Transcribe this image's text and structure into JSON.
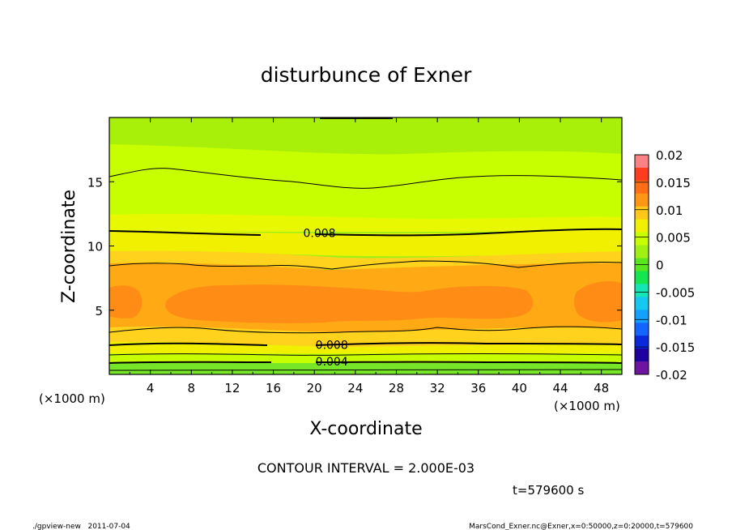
{
  "chart_data": {
    "type": "contour",
    "title": "disturbunce of Exner",
    "xlabel": "X-coordinate",
    "ylabel": "Z-coordinate",
    "x_unit": "(×1000 m)",
    "x_unit_right": "(×1000 m)",
    "xlim": [
      0,
      50
    ],
    "ylim": [
      0,
      20
    ],
    "x_ticks": [
      4,
      8,
      12,
      16,
      20,
      24,
      28,
      32,
      36,
      40,
      44,
      48
    ],
    "y_ticks": [
      5,
      10,
      15
    ],
    "colorbar": {
      "ticks": [
        "0.02",
        "0.015",
        "0.01",
        "0.005",
        "0",
        "-0.005",
        "-0.01",
        "-0.015",
        "-0.02"
      ],
      "range": [
        -0.02,
        0.02
      ],
      "colors": [
        "#fa8282",
        "#ff3c1e",
        "#ff6e14",
        "#ff9614",
        "#ffc819",
        "#f0f000",
        "#c8ff00",
        "#a0f014",
        "#5ae61e",
        "#14e650",
        "#14e6b4",
        "#14c8f0",
        "#14a0ff",
        "#1464ff",
        "#0a28dc",
        "#1e00a0",
        "#6e14a0"
      ]
    },
    "contour_labels": [
      {
        "text": "0.008",
        "x": 20.5,
        "z": 11.0
      },
      {
        "text": "0.008",
        "x": 21.7,
        "z": 2.3
      },
      {
        "text": "0.004",
        "x": 21.7,
        "z": 1.0
      }
    ],
    "contour_interval": "CONTOUR INTERVAL = 2.000E-03",
    "time_label": "t=579600 s"
  },
  "footer": {
    "left": "./gpview-new   2011-07-04",
    "right": "MarsCond_Exner.nc@Exner,x=0:50000,z=0:20000,t=579600"
  }
}
